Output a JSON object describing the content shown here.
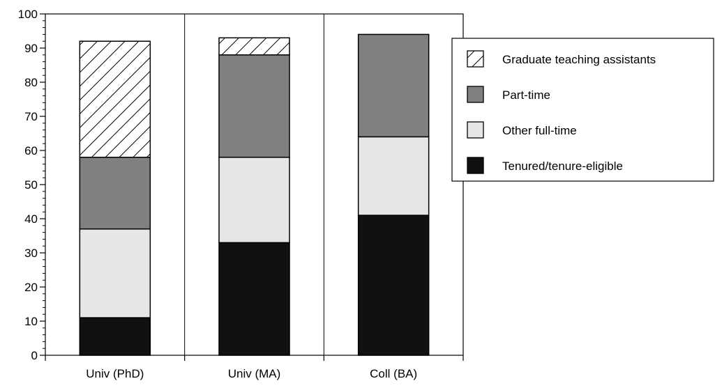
{
  "chart_data": {
    "type": "bar",
    "stacked": true,
    "title": "",
    "xlabel": "",
    "ylabel": "",
    "ylim": [
      0,
      100
    ],
    "yticks": [
      0,
      10,
      20,
      30,
      40,
      50,
      60,
      70,
      80,
      90,
      100
    ],
    "grid": false,
    "legend_position": "top-right",
    "categories": [
      "Univ (PhD)",
      "Univ (MA)",
      "Coll (BA)"
    ],
    "series": [
      {
        "name": "Tenured/tenure-eligible",
        "values": [
          11,
          33,
          41
        ],
        "color": "#111111",
        "pattern": "solid"
      },
      {
        "name": "Other full-time",
        "values": [
          26,
          25,
          23
        ],
        "color": "#e6e6e6",
        "pattern": "solid"
      },
      {
        "name": "Part-time",
        "values": [
          21,
          30,
          30
        ],
        "color": "#808080",
        "pattern": "solid"
      },
      {
        "name": "Graduate teaching assistants",
        "values": [
          34,
          5,
          0
        ],
        "color": "#ffffff",
        "pattern": "hatch"
      }
    ],
    "legend_order": [
      "Graduate teaching assistants",
      "Part-time",
      "Other full-time",
      "Tenured/tenure-eligible"
    ]
  }
}
